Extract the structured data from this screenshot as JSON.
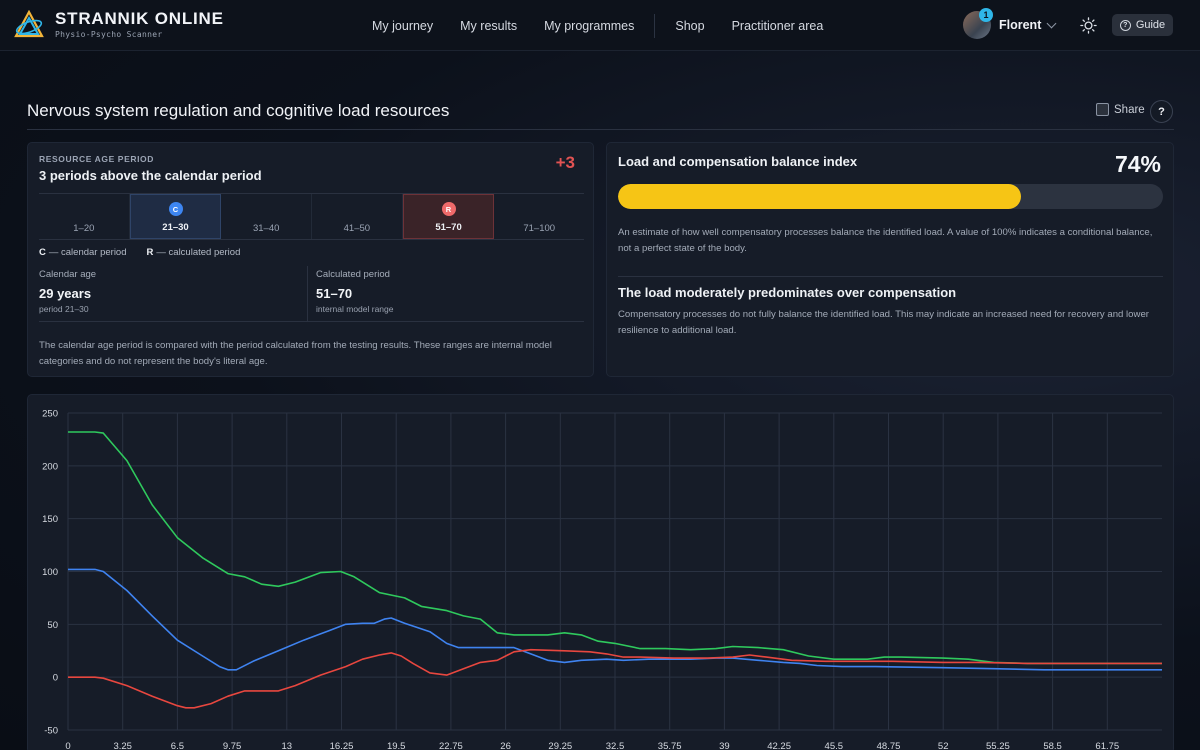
{
  "header": {
    "brand_name": "STRANNIK ONLINE",
    "brand_sub": "Physio-Psycho Scanner",
    "nav": [
      "My journey",
      "My results",
      "My programmes",
      "Shop",
      "Practitioner area"
    ],
    "user_name": "Florent",
    "notification_count": "1",
    "guide_label": "Guide",
    "icons": [
      "logo-icon",
      "chevron-down-icon",
      "sun-icon",
      "help-circle-icon"
    ]
  },
  "page": {
    "title": "Nervous system regulation and cognitive load resources",
    "share_label": "Share",
    "help_label": "?"
  },
  "age_card": {
    "eyebrow": "RESOURCE AGE PERIOD",
    "headline": "3 periods above the calendar period",
    "delta": "+3",
    "periods": [
      {
        "label": "1–20",
        "marker": ""
      },
      {
        "label": "21–30",
        "marker": "C"
      },
      {
        "label": "31–40",
        "marker": ""
      },
      {
        "label": "41–50",
        "marker": ""
      },
      {
        "label": "51–70",
        "marker": "R"
      },
      {
        "label": "71–100",
        "marker": ""
      }
    ],
    "legend_c_key": "C",
    "legend_c": "— calendar period",
    "legend_r_key": "R",
    "legend_r": "— calculated period",
    "calendar_label": "Calendar age",
    "calendar_value": "29 years",
    "calendar_sub": "period 21–30",
    "calculated_label": "Calculated period",
    "calculated_value": "51–70",
    "calculated_sub": "internal model range",
    "note": "The calendar age period is compared with the period calculated from the testing results. These ranges are internal model categories and do not represent the body's literal age."
  },
  "balance_card": {
    "title": "Load and compensation balance index",
    "percent_text": "74%",
    "value": 0.74,
    "description": "An estimate of how well compensatory processes balance the identified load. A value of 100% indicates a conditional balance, not a perfect state of the body.",
    "subtitle": "The load moderately predominates over compensation",
    "sub_description": "Compensatory processes do not fully balance the identified load. This may indicate an increased need for recovery and lower resilience to additional load."
  },
  "colors": {
    "green": "#2fc95d",
    "blue": "#3f83f0",
    "red": "#e8473f",
    "accent_yellow": "#f6c515"
  },
  "chart_data": {
    "type": "line",
    "ylim": [
      -50,
      250
    ],
    "xlim": [
      0,
      65
    ],
    "y_ticks": [
      -50,
      0,
      50,
      100,
      150,
      200,
      250
    ],
    "x_ticks": [
      "0",
      "3.25",
      "6.5",
      "9.75",
      "13",
      "16.25",
      "19.5",
      "22.75",
      "26",
      "29.25",
      "32.5",
      "35.75",
      "39",
      "42.25",
      "45.5",
      "48.75",
      "52",
      "55.25",
      "58.5",
      "61.75"
    ],
    "series": [
      {
        "color": "#2fc95d",
        "points": [
          [
            0,
            232
          ],
          [
            1.6,
            232
          ],
          [
            2.1,
            231
          ],
          [
            3.5,
            205
          ],
          [
            5,
            163
          ],
          [
            6.5,
            132
          ],
          [
            8,
            113
          ],
          [
            9.5,
            98
          ],
          [
            10.5,
            95
          ],
          [
            11.5,
            88
          ],
          [
            12.5,
            86
          ],
          [
            13.5,
            90
          ],
          [
            15,
            99
          ],
          [
            16.2,
            100
          ],
          [
            17,
            95
          ],
          [
            18.5,
            80
          ],
          [
            20,
            75
          ],
          [
            21,
            67
          ],
          [
            22.5,
            63
          ],
          [
            23.5,
            58
          ],
          [
            24.5,
            55
          ],
          [
            25.5,
            42
          ],
          [
            26.5,
            40
          ],
          [
            28.5,
            40
          ],
          [
            29.5,
            42
          ],
          [
            30.5,
            40
          ],
          [
            31.5,
            34
          ],
          [
            32.5,
            32
          ],
          [
            34,
            27
          ],
          [
            35.5,
            27
          ],
          [
            37,
            26
          ],
          [
            38.5,
            27
          ],
          [
            39.5,
            29
          ],
          [
            41,
            28
          ],
          [
            42.5,
            26
          ],
          [
            44,
            20
          ],
          [
            45.5,
            17
          ],
          [
            47.5,
            17
          ],
          [
            48.5,
            19
          ],
          [
            49.5,
            19
          ],
          [
            52,
            18
          ],
          [
            53.5,
            17
          ],
          [
            55,
            14
          ],
          [
            57,
            13
          ],
          [
            60,
            13
          ],
          [
            63,
            13
          ],
          [
            65,
            13
          ]
        ]
      },
      {
        "color": "#3f83f0",
        "points": [
          [
            0,
            102
          ],
          [
            1.6,
            102
          ],
          [
            2.1,
            100
          ],
          [
            3.5,
            82
          ],
          [
            5,
            58
          ],
          [
            6.5,
            35
          ],
          [
            8,
            20
          ],
          [
            9,
            10
          ],
          [
            9.5,
            7
          ],
          [
            10,
            7
          ],
          [
            11,
            15
          ],
          [
            12.5,
            25
          ],
          [
            14,
            35
          ],
          [
            15.5,
            44
          ],
          [
            16.5,
            50
          ],
          [
            17.5,
            51
          ],
          [
            18.2,
            51
          ],
          [
            18.8,
            55
          ],
          [
            19.2,
            56
          ],
          [
            20,
            51
          ],
          [
            21.5,
            43
          ],
          [
            22.5,
            32
          ],
          [
            23.2,
            28
          ],
          [
            24.5,
            28
          ],
          [
            26.5,
            28
          ],
          [
            27.5,
            22
          ],
          [
            28.5,
            16
          ],
          [
            29.5,
            14
          ],
          [
            30.5,
            16
          ],
          [
            32,
            17
          ],
          [
            33,
            16
          ],
          [
            34.5,
            17
          ],
          [
            36,
            17
          ],
          [
            37,
            17
          ],
          [
            38.5,
            18
          ],
          [
            39.5,
            18
          ],
          [
            41,
            16
          ],
          [
            42.5,
            14
          ],
          [
            43.5,
            13
          ],
          [
            44.5,
            11
          ],
          [
            46,
            10
          ],
          [
            48,
            10
          ],
          [
            52,
            9
          ],
          [
            55,
            8
          ],
          [
            58,
            7
          ],
          [
            65,
            7
          ]
        ]
      },
      {
        "color": "#e8473f",
        "points": [
          [
            0,
            0
          ],
          [
            1.6,
            0
          ],
          [
            2.1,
            -1
          ],
          [
            3.5,
            -8
          ],
          [
            5,
            -18
          ],
          [
            6.5,
            -27
          ],
          [
            7,
            -29
          ],
          [
            7.5,
            -29
          ],
          [
            8.5,
            -25
          ],
          [
            9.5,
            -18
          ],
          [
            10.5,
            -13
          ],
          [
            12.5,
            -13
          ],
          [
            13.5,
            -8
          ],
          [
            15,
            2
          ],
          [
            16.5,
            10
          ],
          [
            17.5,
            17
          ],
          [
            18.5,
            21
          ],
          [
            19.2,
            23
          ],
          [
            19.8,
            20
          ],
          [
            20.5,
            13
          ],
          [
            21.5,
            4
          ],
          [
            22.5,
            2
          ],
          [
            23.5,
            8
          ],
          [
            24.5,
            14
          ],
          [
            25.5,
            16
          ],
          [
            26.5,
            24
          ],
          [
            27.5,
            26
          ],
          [
            29.5,
            25
          ],
          [
            31,
            24
          ],
          [
            32,
            22
          ],
          [
            33,
            19
          ],
          [
            34,
            19
          ],
          [
            36,
            18
          ],
          [
            38,
            18
          ],
          [
            39.5,
            19
          ],
          [
            40.5,
            21
          ],
          [
            41.5,
            19
          ],
          [
            43,
            16
          ],
          [
            45,
            15
          ],
          [
            47.5,
            15
          ],
          [
            49,
            15
          ],
          [
            52,
            14
          ],
          [
            54,
            14
          ],
          [
            57,
            13
          ],
          [
            60,
            13
          ],
          [
            65,
            13
          ]
        ]
      }
    ]
  }
}
